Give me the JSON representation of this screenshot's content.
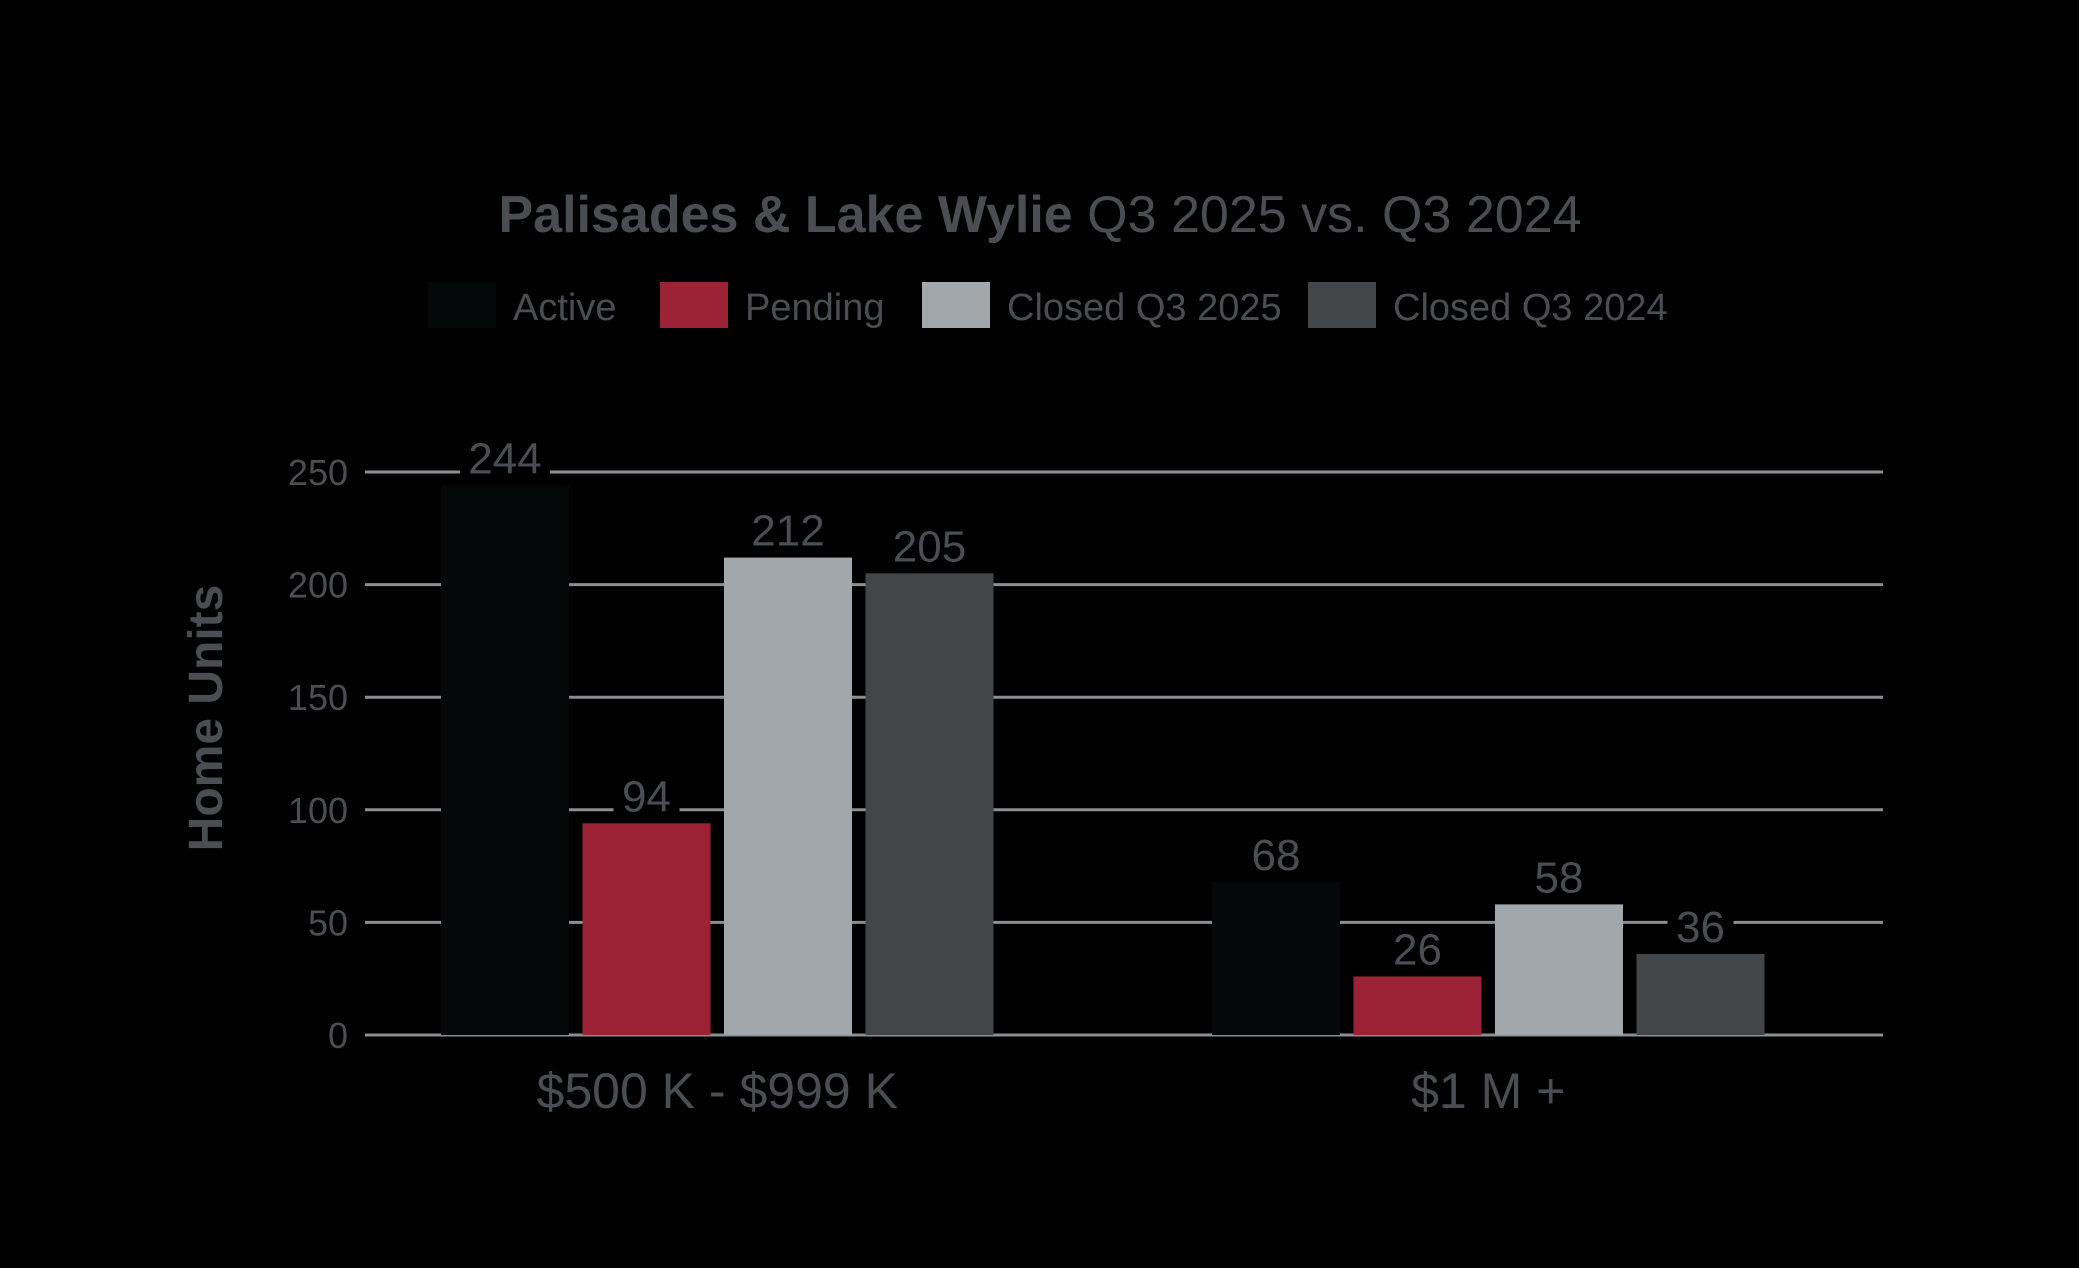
{
  "chart_data": {
    "type": "bar",
    "title_strong": "Palisades & Lake Wylie",
    "title_rest": " Q3 2025 vs. Q3 2024",
    "ylabel": "Home Units",
    "xlabel": "",
    "ylim": [
      0,
      250
    ],
    "yticks": [
      0,
      50,
      100,
      150,
      200,
      250
    ],
    "grid": true,
    "legend_position": "top",
    "categories": [
      "$500 K - $999 K",
      "$1 M +"
    ],
    "series": [
      {
        "name": "Active",
        "color": "#050808",
        "values": [
          244,
          68
        ]
      },
      {
        "name": "Pending",
        "color": "#9b2335",
        "values": [
          94,
          26
        ]
      },
      {
        "name": "Closed Q3 2025",
        "color": "#a2a7ac",
        "values": [
          212,
          58
        ]
      },
      {
        "name": "Closed Q3 2024",
        "color": "#434649",
        "values": [
          205,
          36
        ]
      }
    ],
    "text_color": "#4a4d51",
    "grid_color": "#8b8e92"
  }
}
